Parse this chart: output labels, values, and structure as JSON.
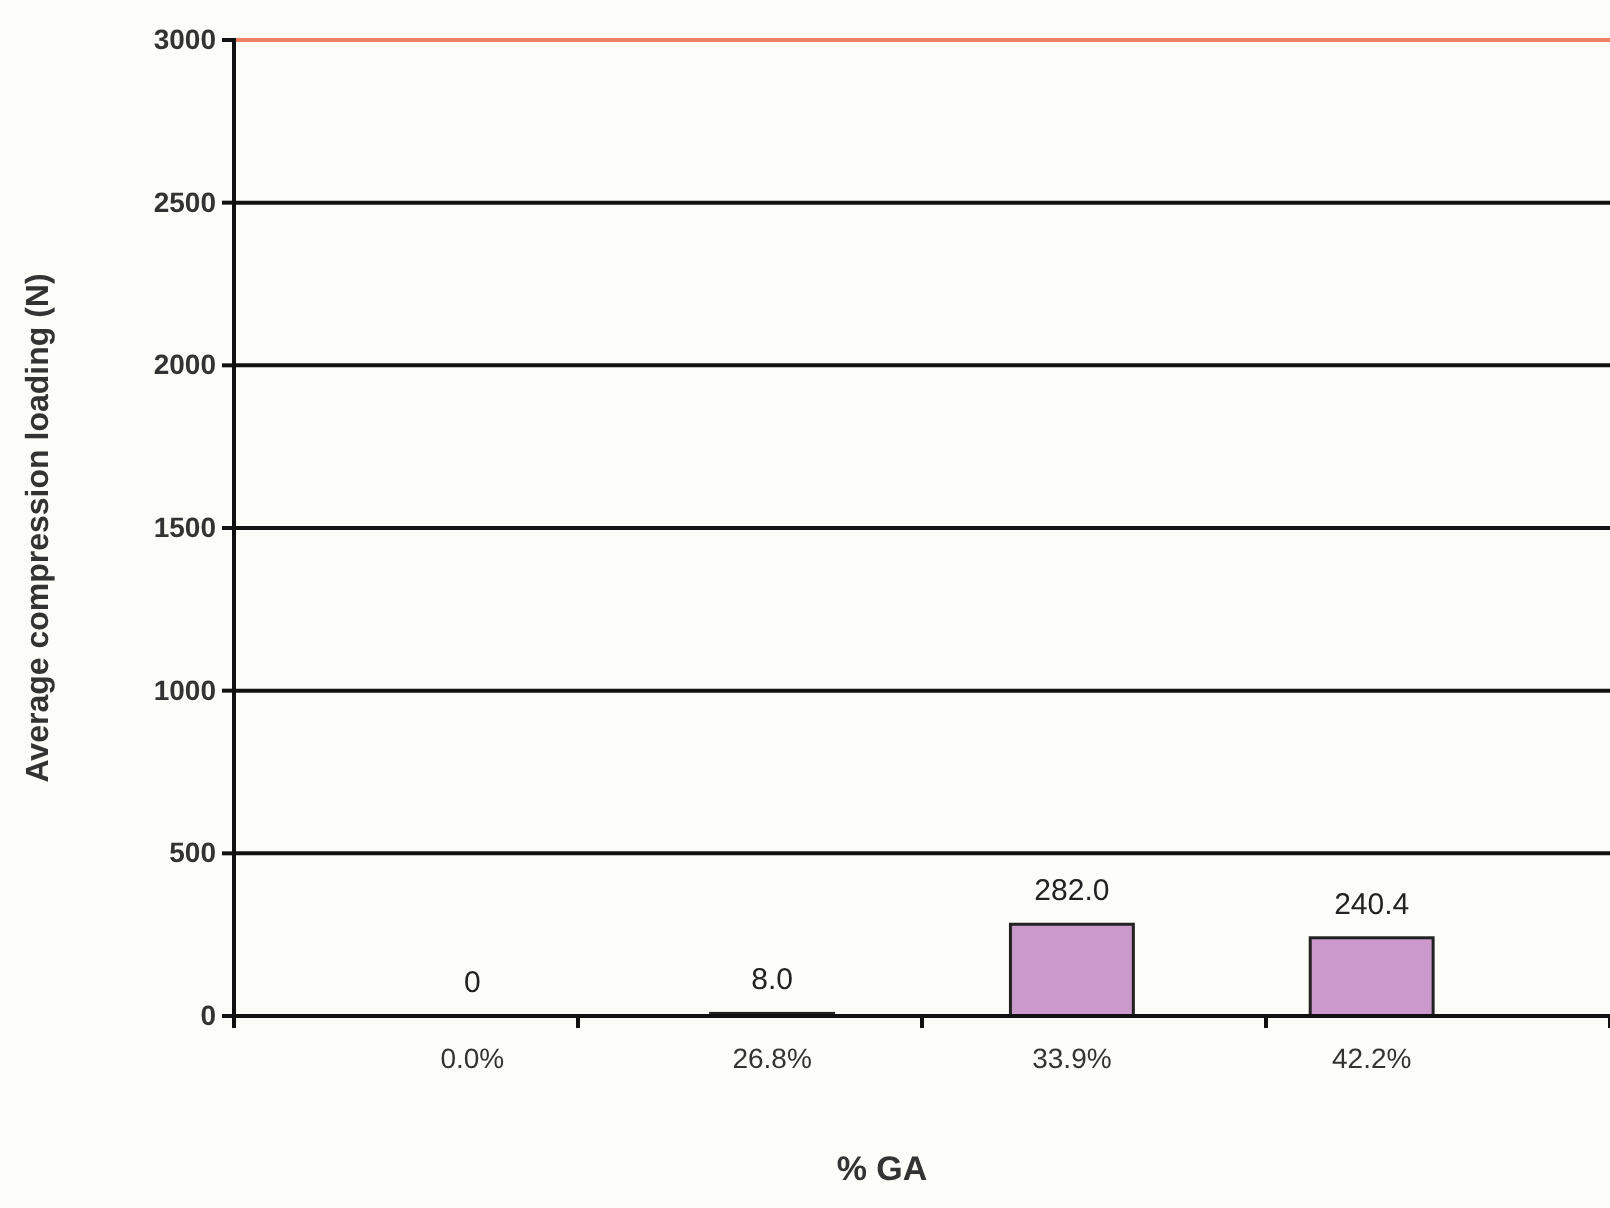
{
  "chart_data": {
    "type": "bar",
    "xlabel": "% GA",
    "ylabel": "Average compression loading  (N)",
    "categories": [
      "0.0%",
      "26.8%",
      "33.9%",
      "42.2%"
    ],
    "values": [
      0,
      8.0,
      282.0,
      240.4
    ],
    "value_labels": [
      "0",
      "8.0",
      "282.0",
      "240.4"
    ],
    "color": "#cc99cc",
    "ylim": [
      0,
      3000
    ],
    "yticks": [
      0,
      500,
      1000,
      1500,
      2000,
      2500,
      3000
    ],
    "grid": "y",
    "ref_lines": [
      {
        "axis": "y",
        "value": 3000,
        "color": "#f08060"
      }
    ]
  }
}
